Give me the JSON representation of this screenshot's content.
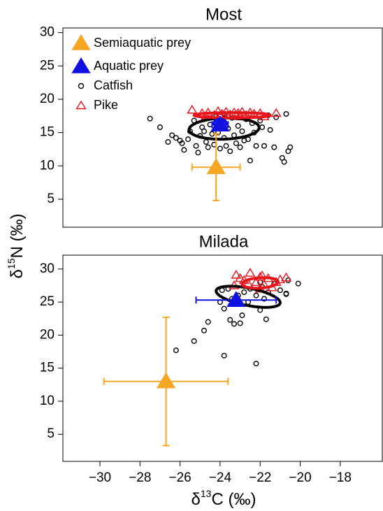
{
  "ylabel": {
    "prefix": "δ",
    "sup": "15",
    "suffix": "N (‰)"
  },
  "chart_data": [
    {
      "type": "scatter",
      "title": "Most",
      "xlim": [
        -31.85,
        -15.9
      ],
      "ylim": [
        0.8,
        30.7
      ],
      "yticks": [
        5,
        10,
        15,
        20,
        25,
        30
      ],
      "legend": "top-left",
      "series": [
        {
          "name": "Semiaquatic prey",
          "color": "#f5a623",
          "marker": "big-triangle",
          "x": [
            -24.2
          ],
          "y": [
            9.8
          ],
          "xerr": [
            1.2
          ],
          "yerr": [
            5.0
          ]
        },
        {
          "name": "Aquatic prey",
          "color": "#1010e0",
          "marker": "big-triangle",
          "x": [
            -24.0
          ],
          "y": [
            16.2
          ],
          "xerr": [
            0.4
          ],
          "yerr": [
            0.6
          ]
        },
        {
          "name": "Catfish",
          "color": "#000000",
          "marker": "circle",
          "x": [
            -27.5,
            -27.0,
            -26.4,
            -26.2,
            -26.0,
            -25.9,
            -25.8,
            -25.6,
            -25.5,
            -25.3,
            -25.2,
            -25.0,
            -24.9,
            -24.8,
            -24.7,
            -24.6,
            -24.5,
            -24.4,
            -24.3,
            -24.2,
            -24.1,
            -24.0,
            -23.9,
            -23.8,
            -23.7,
            -23.6,
            -23.5,
            -23.4,
            -23.3,
            -23.2,
            -23.1,
            -23.0,
            -22.9,
            -22.8,
            -22.7,
            -22.6,
            -22.5,
            -22.4,
            -22.3,
            -22.2,
            -22.0,
            -21.9,
            -21.8,
            -21.6,
            -21.5,
            -21.3,
            -21.2,
            -20.9,
            -20.8,
            -20.7,
            -20.6,
            -20.5,
            -26.6,
            -25.1,
            -24.8,
            -23.8
          ],
          "y": [
            17.1,
            15.8,
            14.6,
            14.2,
            13.8,
            13.4,
            12.4,
            14.0,
            15.2,
            16.8,
            13.0,
            14.5,
            15.8,
            17.0,
            13.6,
            12.8,
            16.2,
            14.8,
            13.2,
            17.4,
            15.0,
            12.6,
            16.8,
            14.2,
            13.0,
            15.6,
            12.2,
            17.2,
            14.6,
            13.4,
            16.0,
            12.8,
            15.2,
            13.8,
            17.0,
            14.0,
            10.8,
            16.4,
            15.0,
            13.0,
            16.8,
            15.8,
            13.0,
            17.6,
            15.4,
            12.8,
            17.3,
            11.2,
            10.6,
            17.8,
            12.2,
            12.8,
            13.6,
            12.0,
            15.2,
            17.8
          ]
        },
        {
          "name": "Pike",
          "color": "#e8141c",
          "marker": "triangle",
          "x": [
            -25.4,
            -24.9,
            -24.6,
            -24.3,
            -24.1,
            -23.9,
            -23.7,
            -23.5,
            -23.3,
            -23.1,
            -22.9,
            -22.7,
            -22.5,
            -22.3,
            -22.0,
            -21.8,
            -21.2,
            -24.7,
            -23.0
          ],
          "y": [
            18.4,
            17.9,
            18.0,
            17.6,
            18.2,
            17.8,
            18.1,
            17.7,
            18.0,
            17.9,
            18.1,
            17.6,
            18.0,
            17.8,
            17.9,
            17.4,
            17.9,
            17.5,
            17.4
          ]
        }
      ],
      "ellipses": [
        {
          "color": "#000000",
          "cx": -23.8,
          "cy": 15.6,
          "rx": 1.75,
          "ry": 1.6,
          "rho": 0.1
        },
        {
          "color": "#e8141c",
          "cx": -23.4,
          "cy": 17.6,
          "rx": 1.9,
          "ry": 0.4,
          "rho": 0.0
        },
        {
          "color": "#1010e0",
          "cx": -24.0,
          "cy": 16.4,
          "rx": 0.3,
          "ry": 0.6,
          "rho": 0.0
        }
      ]
    },
    {
      "type": "scatter",
      "title": "Milada",
      "xlim": [
        -31.85,
        -15.9
      ],
      "ylim": [
        0.9,
        32.1
      ],
      "yticks": [
        5,
        10,
        15,
        20,
        25,
        30
      ],
      "xticks": [
        {
          "value": -30,
          "label": "−30"
        },
        {
          "value": -28,
          "label": "−28"
        },
        {
          "value": -26,
          "label": "−26"
        },
        {
          "value": -24,
          "label": "−24"
        },
        {
          "value": -22,
          "label": "−22"
        },
        {
          "value": -20,
          "label": "−20"
        },
        {
          "value": -18,
          "label": "−18"
        }
      ],
      "xlabel": {
        "prefix": "δ",
        "sup": "13",
        "suffix": "C (‰)"
      },
      "series": [
        {
          "color": "#f5a623",
          "marker": "big-triangle",
          "x": [
            -26.7
          ],
          "y": [
            13.0
          ],
          "xerr": [
            3.1
          ],
          "yerr": [
            9.7
          ]
        },
        {
          "color": "#1010e0",
          "marker": "big-triangle",
          "x": [
            -23.2
          ],
          "y": [
            25.3
          ],
          "xerr": [
            2.0
          ],
          "yerr": [
            0.5
          ]
        },
        {
          "color": "#000000",
          "marker": "circle",
          "x": [
            -26.2,
            -25.3,
            -24.8,
            -24.6,
            -23.8,
            -23.5,
            -23.3,
            -23.0,
            -22.9,
            -22.2,
            -22.0,
            -21.7,
            -23.8,
            -23.4,
            -23.1,
            -22.8,
            -22.5,
            -22.2,
            -21.9,
            -21.6,
            -21.3,
            -21.0,
            -20.7,
            -20.6,
            -20.1,
            -23.6,
            -22.6,
            -21.8,
            -24.0,
            -23.9,
            -22.0,
            -20.7
          ],
          "y": [
            17.7,
            19.1,
            20.7,
            22.0,
            16.9,
            22.3,
            21.7,
            21.8,
            23.0,
            15.7,
            23.8,
            22.4,
            24.0,
            25.5,
            26.0,
            26.5,
            27.0,
            26.0,
            27.3,
            26.5,
            27.8,
            26.8,
            26.2,
            28.3,
            27.8,
            27.0,
            25.0,
            25.5,
            25.0,
            26.8,
            28.0,
            26.3
          ]
        },
        {
          "color": "#e8141c",
          "marker": "triangle",
          "x": [
            -23.2,
            -22.5,
            -22.0,
            -21.6,
            -21.0,
            -20.7,
            -22.8,
            -22.2,
            -21.8,
            -21.4,
            -23.3,
            -22.6,
            -21.2,
            -22.0,
            -23.0,
            -21.9
          ],
          "y": [
            29.1,
            29.4,
            28.8,
            28.6,
            28.4,
            28.7,
            28.3,
            28.0,
            27.6,
            27.2,
            27.5,
            27.8,
            28.0,
            27.0,
            28.6,
            29.0
          ]
        }
      ],
      "ellipses": [
        {
          "color": "#000000",
          "cx": -22.6,
          "cy": 25.8,
          "rx": 1.6,
          "ry": 1.6,
          "rho": -0.55
        },
        {
          "color": "#e8141c",
          "cx": -22.0,
          "cy": 27.9,
          "rx": 0.9,
          "ry": 0.8,
          "rho": 0.2
        }
      ]
    }
  ]
}
